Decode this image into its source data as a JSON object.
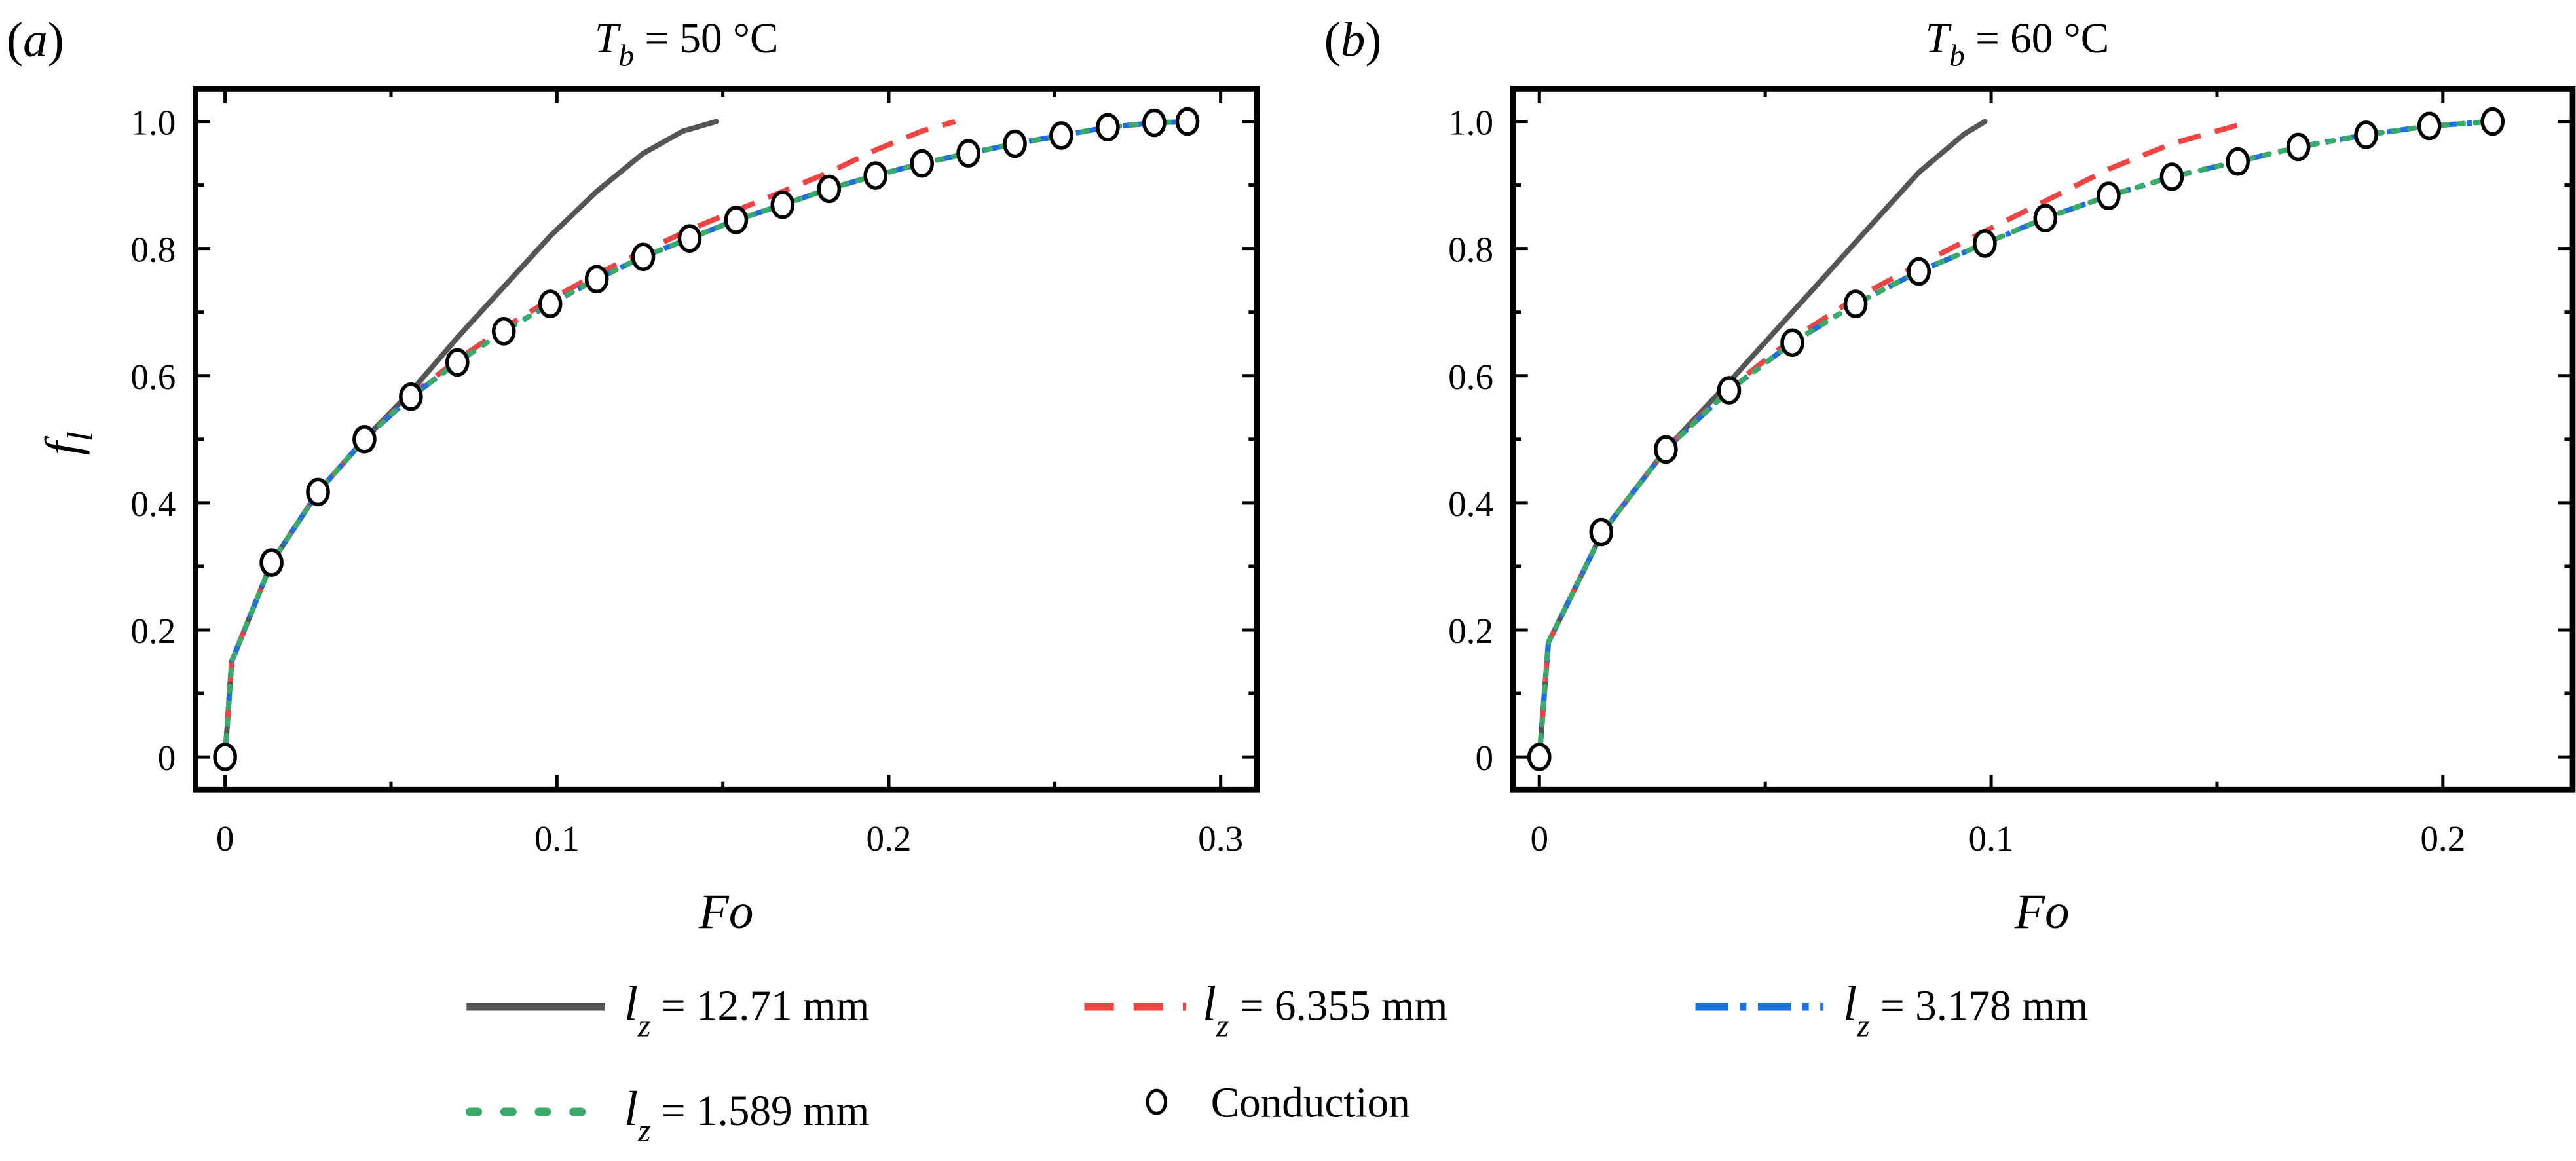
{
  "figure": {
    "panels": [
      {
        "label": "(a)",
        "label_letter": "a",
        "title_var": "T",
        "title_sub": "b",
        "title_value": " = 50 °C",
        "xlabel": "Fo",
        "ylabel_var": "f",
        "ylabel_sub": "l",
        "xticks": [
          "0",
          "0.1",
          "0.2",
          "0.3"
        ],
        "yticks": [
          "0",
          "0.2",
          "0.4",
          "0.6",
          "0.8",
          "1.0"
        ]
      },
      {
        "label": "(b)",
        "label_letter": "b",
        "title_var": "T",
        "title_sub": "b",
        "title_value": " = 60 °C",
        "xlabel": "Fo",
        "xticks": [
          "0",
          "0.1",
          "0.2"
        ],
        "yticks": [
          "0",
          "0.2",
          "0.4",
          "0.6",
          "0.8",
          "1.0"
        ]
      }
    ],
    "legend": [
      {
        "var": "l",
        "sub": "z",
        "value": " = 12.71 mm",
        "style": "solid",
        "color": "#555555"
      },
      {
        "var": "l",
        "sub": "z",
        "value": " = 6.355 mm",
        "style": "dash",
        "color": "#ee4444"
      },
      {
        "var": "l",
        "sub": "z",
        "value": " = 3.178 mm",
        "style": "dashdot",
        "color": "#1f6fde"
      },
      {
        "var": "l",
        "sub": "z",
        "value": " = 1.589 mm",
        "style": "dot",
        "color": "#3aaa6a"
      },
      {
        "label": "Conduction",
        "style": "open-circle",
        "color": "#000000"
      }
    ]
  },
  "chart_data": [
    {
      "type": "line",
      "title": "T_b = 50 °C",
      "panel": "(a)",
      "xlabel": "Fo",
      "ylabel": "f_l",
      "xlim": [
        -0.009,
        0.31
      ],
      "ylim": [
        -0.05,
        1.05
      ],
      "xticks": [
        0,
        0.1,
        0.2,
        0.3
      ],
      "yticks": [
        0,
        0.2,
        0.4,
        0.6,
        0.8,
        1.0
      ],
      "grid": false,
      "legend_position": "bottom (shared)",
      "series": [
        {
          "name": "l_z = 12.71 mm",
          "style": "solid",
          "color": "#555555",
          "x": [
            0,
            0.002,
            0.014,
            0.028,
            0.042,
            0.056,
            0.07,
            0.084,
            0.098,
            0.112,
            0.126,
            0.138,
            0.148
          ],
          "y": [
            0,
            0.15,
            0.306,
            0.417,
            0.5,
            0.575,
            0.66,
            0.74,
            0.82,
            0.89,
            0.95,
            0.985,
            1.0
          ]
        },
        {
          "name": "l_z = 6.355 mm",
          "style": "dash",
          "color": "#ee4444",
          "x": [
            0,
            0.002,
            0.014,
            0.028,
            0.042,
            0.056,
            0.07,
            0.084,
            0.098,
            0.112,
            0.126,
            0.14,
            0.154,
            0.168,
            0.182,
            0.196,
            0.21,
            0.22
          ],
          "y": [
            0,
            0.15,
            0.306,
            0.417,
            0.5,
            0.569,
            0.625,
            0.675,
            0.72,
            0.76,
            0.795,
            0.83,
            0.86,
            0.89,
            0.92,
            0.955,
            0.985,
            1.0
          ]
        },
        {
          "name": "l_z = 3.178 mm",
          "style": "dashdot",
          "color": "#1f6fde",
          "x": [
            0,
            0.002,
            0.014,
            0.028,
            0.042,
            0.056,
            0.07,
            0.084,
            0.098,
            0.112,
            0.126,
            0.14,
            0.154,
            0.168,
            0.182,
            0.196,
            0.21,
            0.224,
            0.238,
            0.252,
            0.266,
            0.28,
            0.29
          ],
          "y": [
            0,
            0.15,
            0.306,
            0.417,
            0.5,
            0.567,
            0.621,
            0.67,
            0.713,
            0.752,
            0.787,
            0.816,
            0.845,
            0.869,
            0.894,
            0.915,
            0.934,
            0.95,
            0.965,
            0.978,
            0.991,
            0.998,
            1.0
          ]
        },
        {
          "name": "l_z = 1.589 mm",
          "style": "dot",
          "color": "#3aaa6a",
          "x": [
            0,
            0.002,
            0.014,
            0.028,
            0.042,
            0.056,
            0.07,
            0.084,
            0.098,
            0.112,
            0.126,
            0.14,
            0.154,
            0.168,
            0.182,
            0.196,
            0.21,
            0.224,
            0.238,
            0.252,
            0.266,
            0.28,
            0.29
          ],
          "y": [
            0,
            0.15,
            0.306,
            0.417,
            0.5,
            0.567,
            0.621,
            0.67,
            0.713,
            0.752,
            0.787,
            0.816,
            0.845,
            0.869,
            0.894,
            0.915,
            0.934,
            0.95,
            0.965,
            0.978,
            0.991,
            0.998,
            1.0
          ]
        },
        {
          "name": "Conduction",
          "style": "open-circle",
          "color": "#000000",
          "x": [
            0,
            0.014,
            0.028,
            0.042,
            0.056,
            0.07,
            0.084,
            0.098,
            0.112,
            0.126,
            0.14,
            0.154,
            0.168,
            0.182,
            0.196,
            0.21,
            0.224,
            0.238,
            0.252,
            0.266,
            0.28,
            0.29
          ],
          "y": [
            0,
            0.306,
            0.417,
            0.5,
            0.567,
            0.621,
            0.67,
            0.713,
            0.752,
            0.787,
            0.816,
            0.845,
            0.869,
            0.894,
            0.915,
            0.934,
            0.95,
            0.965,
            0.978,
            0.991,
            0.998,
            1.0
          ]
        }
      ]
    },
    {
      "type": "line",
      "title": "T_b = 60 °C",
      "panel": "(b)",
      "xlabel": "Fo",
      "ylabel": "f_l",
      "xlim": [
        -0.006,
        0.228
      ],
      "ylim": [
        -0.05,
        1.05
      ],
      "xticks": [
        0,
        0.1,
        0.2
      ],
      "yticks": [
        0,
        0.2,
        0.4,
        0.6,
        0.8,
        1.0
      ],
      "grid": false,
      "legend_position": "bottom (shared)",
      "series": [
        {
          "name": "l_z = 12.71 mm",
          "style": "solid",
          "color": "#555555",
          "x": [
            0,
            0.002,
            0.014,
            0.028,
            0.042,
            0.056,
            0.07,
            0.084,
            0.094,
            0.0986
          ],
          "y": [
            0,
            0.18,
            0.354,
            0.484,
            0.59,
            0.7,
            0.81,
            0.92,
            0.98,
            1.0
          ]
        },
        {
          "name": "l_z = 6.355 mm",
          "style": "dash",
          "color": "#ee4444",
          "x": [
            0,
            0.002,
            0.014,
            0.028,
            0.042,
            0.056,
            0.07,
            0.084,
            0.098,
            0.112,
            0.126,
            0.14,
            0.1575
          ],
          "y": [
            0,
            0.18,
            0.354,
            0.484,
            0.58,
            0.658,
            0.722,
            0.775,
            0.825,
            0.875,
            0.925,
            0.965,
            1.0
          ]
        },
        {
          "name": "l_z = 3.178 mm",
          "style": "dashdot",
          "color": "#1f6fde",
          "x": [
            0,
            0.002,
            0.014,
            0.028,
            0.042,
            0.056,
            0.07,
            0.084,
            0.0986,
            0.112,
            0.126,
            0.14,
            0.1546,
            0.168,
            0.183,
            0.197,
            0.211
          ],
          "y": [
            0,
            0.18,
            0.354,
            0.484,
            0.577,
            0.652,
            0.713,
            0.764,
            0.808,
            0.848,
            0.883,
            0.913,
            0.937,
            0.96,
            0.979,
            0.993,
            1.0
          ]
        },
        {
          "name": "l_z = 1.589 mm",
          "style": "dot",
          "color": "#3aaa6a",
          "x": [
            0,
            0.002,
            0.014,
            0.028,
            0.042,
            0.056,
            0.07,
            0.084,
            0.0986,
            0.112,
            0.126,
            0.14,
            0.1546,
            0.168,
            0.183,
            0.197,
            0.211
          ],
          "y": [
            0,
            0.18,
            0.354,
            0.484,
            0.577,
            0.652,
            0.713,
            0.764,
            0.808,
            0.848,
            0.883,
            0.913,
            0.937,
            0.96,
            0.979,
            0.993,
            1.0
          ]
        },
        {
          "name": "Conduction",
          "style": "open-circle",
          "color": "#000000",
          "x": [
            0,
            0.0137,
            0.028,
            0.042,
            0.056,
            0.07,
            0.084,
            0.0986,
            0.112,
            0.126,
            0.14,
            0.1546,
            0.168,
            0.183,
            0.197,
            0.211
          ],
          "y": [
            0,
            0.354,
            0.484,
            0.577,
            0.652,
            0.713,
            0.764,
            0.808,
            0.848,
            0.883,
            0.913,
            0.937,
            0.96,
            0.979,
            0.993,
            1.0
          ]
        }
      ]
    }
  ]
}
